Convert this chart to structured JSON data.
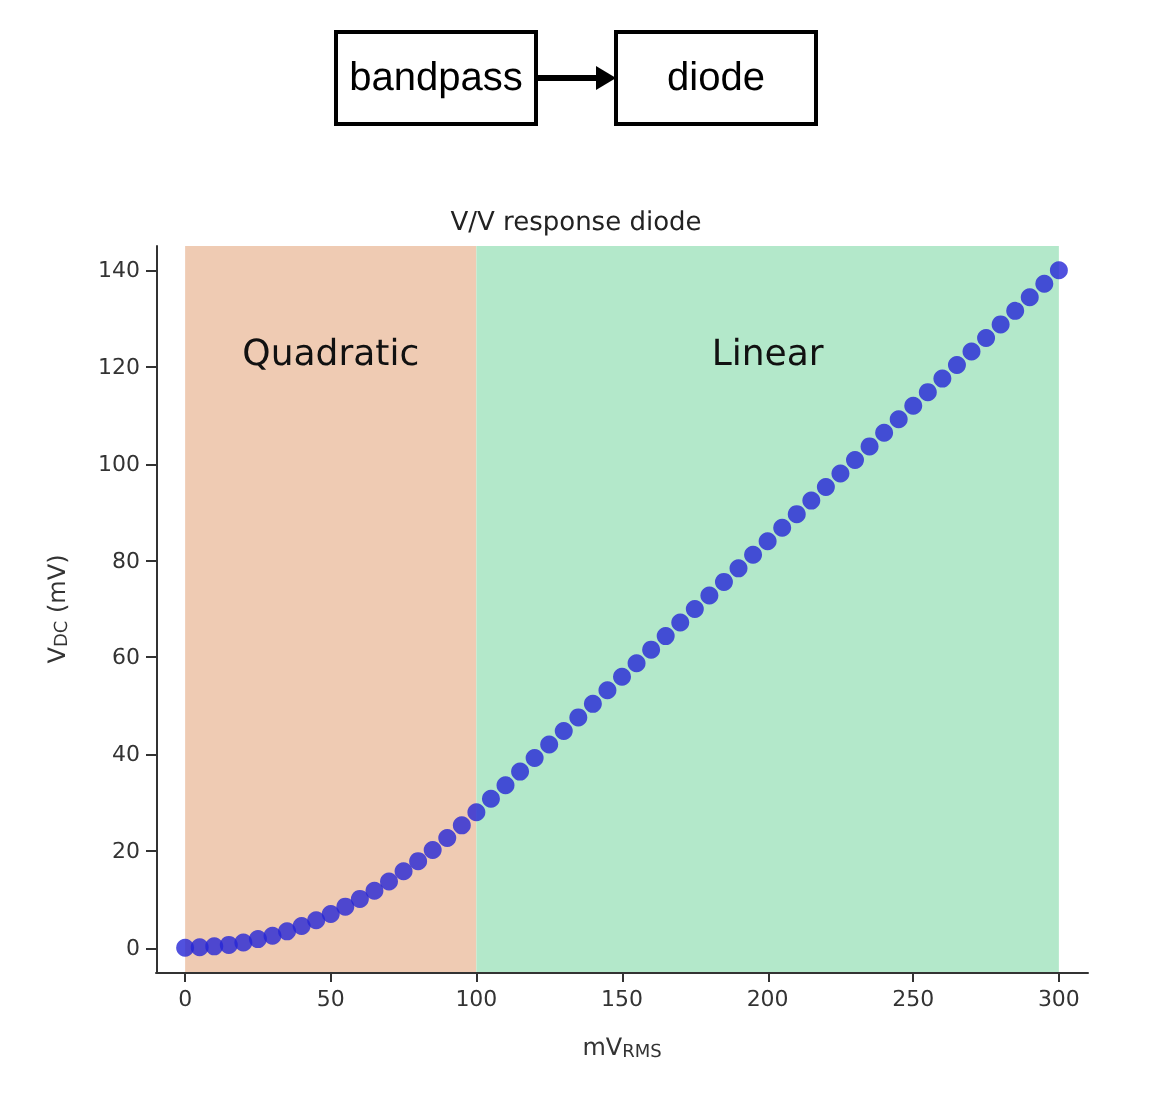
{
  "chart_data": {
    "type": "scatter",
    "title": "V/V response diode",
    "xlabel": "mV$_{RMS}$",
    "ylabel": "V$_{DC}$ (mV)",
    "annotations": [
      "bandpass",
      "diode"
    ],
    "x": [
      0,
      5,
      10,
      15,
      20,
      25,
      30,
      35,
      40,
      45,
      50,
      55,
      60,
      65,
      70,
      75,
      80,
      85,
      90,
      95,
      100,
      105,
      110,
      115,
      120,
      125,
      130,
      135,
      140,
      145,
      150,
      155,
      160,
      165,
      170,
      175,
      180,
      185,
      190,
      195,
      200,
      205,
      210,
      215,
      220,
      225,
      230,
      235,
      240,
      245,
      250,
      255,
      260,
      265,
      270,
      275,
      280,
      285,
      290,
      295,
      300
    ],
    "series": [
      {
        "color": "#2626d6",
        "values": [
          0,
          0.1,
          0.3,
          0.6,
          1.1,
          1.8,
          2.5,
          3.4,
          4.5,
          5.7,
          7,
          8.5,
          10.1,
          11.8,
          13.7,
          15.8,
          17.9,
          20.2,
          22.7,
          25.3,
          28,
          30.8,
          33.6,
          36.4,
          39.2,
          42,
          44.8,
          47.6,
          50.4,
          53.2,
          56,
          58.8,
          61.6,
          64.4,
          67.2,
          70,
          72.8,
          75.6,
          78.4,
          81.2,
          84,
          86.8,
          89.6,
          92.4,
          95.2,
          98,
          100.8,
          103.6,
          106.4,
          109.2,
          112,
          114.8,
          117.6,
          120.4,
          123.2,
          126,
          128.8,
          131.6,
          134.4,
          137.2,
          140
        ]
      }
    ],
    "bands": [
      {
        "axis": "x",
        "from": 0,
        "to": 100,
        "label": "Quadratic",
        "color": "#efcbb3"
      },
      {
        "axis": "x",
        "from": 100,
        "to": 300,
        "label": "Linear",
        "color": "#b3e8ca"
      }
    ],
    "xlim": [
      -10,
      310
    ],
    "ylim": [
      -5,
      145
    ],
    "xticks": [
      0,
      50,
      100,
      150,
      200,
      250,
      300
    ],
    "yticks": [
      0,
      20,
      40,
      60,
      80,
      100,
      120,
      140
    ],
    "grid": false,
    "marker": "circle"
  }
}
